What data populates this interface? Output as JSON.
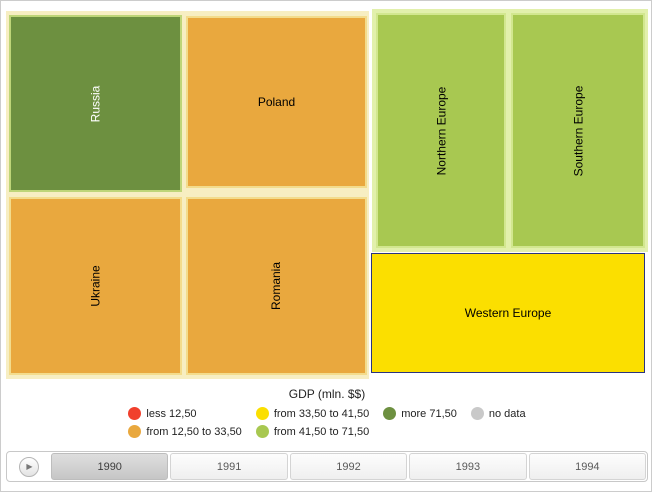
{
  "chart_data": {
    "type": "treemap",
    "title": "GDP (mln. $$)",
    "year": "1990",
    "years": [
      "1990",
      "1991",
      "1992",
      "1993",
      "1994"
    ],
    "legend_bins": [
      "less 12,50",
      "from 12,50 to 33,50",
      "from 33,50 to 41,50",
      "from 41,50 to 71,50",
      "more 71,50",
      "no data"
    ],
    "nodes": [
      {
        "name": "Russia",
        "category": "more 71,50"
      },
      {
        "name": "Poland",
        "category": "from 12,50 to 33,50"
      },
      {
        "name": "Ukraine",
        "category": "from 12,50 to 33,50"
      },
      {
        "name": "Romania",
        "category": "from 12,50 to 33,50"
      },
      {
        "name": "Northern Europe",
        "category": "from 41,50 to 71,50"
      },
      {
        "name": "Southern Europe",
        "category": "from 41,50 to 71,50"
      },
      {
        "name": "Western Europe",
        "category": "from 33,50 to 41,50",
        "selected": true
      }
    ]
  },
  "chart": {
    "groups": {
      "eastern_bg": "#f7eec2",
      "rest_bg": "#e2f0ac"
    },
    "cells": [
      {
        "label": "Russia",
        "color": "#6d9040",
        "border": "#bed578",
        "label_color": "#ffffff"
      },
      {
        "label": "Poland",
        "color": "#e9a83e",
        "border": "#f3dc8c",
        "label_color": "#000000"
      },
      {
        "label": "Ukraine",
        "color": "#e9a83e",
        "border": "#f3dc8c",
        "label_color": "#000000"
      },
      {
        "label": "Romania",
        "color": "#e9a83e",
        "border": "#f3dc8c",
        "label_color": "#000000"
      },
      {
        "label": "Northern Europe",
        "color": "#a8c851",
        "border": "#d2e78f",
        "label_color": "#000000"
      },
      {
        "label": "Southern Europe",
        "color": "#a8c851",
        "border": "#d2e78f",
        "label_color": "#000000"
      },
      {
        "label": "Western Europe",
        "color": "#fbdf00",
        "border": "#2a3480",
        "label_color": "#000000"
      }
    ]
  },
  "legend": {
    "title": "GDP (mln. $$)",
    "items": [
      {
        "label": "less 12,50",
        "color": "#f1402d"
      },
      {
        "label": "from 12,50 to 33,50",
        "color": "#e9a83e"
      },
      {
        "label": "from 33,50 to 41,50",
        "color": "#fbdf00"
      },
      {
        "label": "from 41,50 to 71,50",
        "color": "#a8c851"
      },
      {
        "label": "more 71,50",
        "color": "#6d9040"
      },
      {
        "label": "no data",
        "color": "#c9c9c9"
      }
    ]
  },
  "timeline": {
    "play_icon": "▶",
    "years": [
      {
        "label": "1990",
        "selected": true
      },
      {
        "label": "1991",
        "selected": false
      },
      {
        "label": "1992",
        "selected": false
      },
      {
        "label": "1993",
        "selected": false
      },
      {
        "label": "1994",
        "selected": false
      }
    ]
  }
}
